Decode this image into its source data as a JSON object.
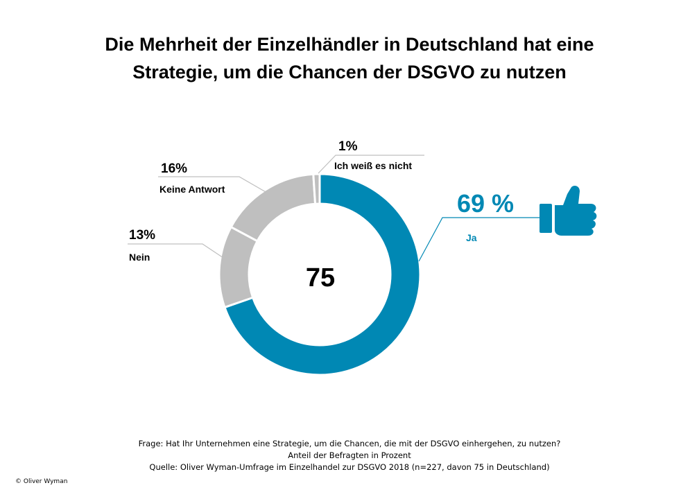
{
  "title_line1": "Die Mehrheit der Einzelhändler in Deutschland hat eine",
  "title_line2": "Strategie, um die Chancen der DSGVO zu nutzen",
  "chart_data": {
    "type": "pie",
    "center_label": "75",
    "slices": [
      {
        "label": "Ja",
        "value": 69,
        "value_label": "69 %",
        "color": "#0088b4"
      },
      {
        "label": "Nein",
        "value": 13,
        "value_label": "13%",
        "color": "#bfbfbf"
      },
      {
        "label": "Keine Antwort",
        "value": 16,
        "value_label": "16%",
        "color": "#bfbfbf"
      },
      {
        "label": "Ich weiß es nicht",
        "value": 1,
        "value_label": "1%",
        "color": "#bfbfbf"
      }
    ],
    "thumbs_up_icon": "thumbs-up-icon",
    "accent_color": "#0088b4"
  },
  "footer": {
    "question": "Frage: Hat Ihr Unternehmen  eine Strategie,  um die Chancen, die mit der DSGVO einhergehen,  zu nutzen?",
    "unit": "Anteil der Befragten  in Prozent",
    "source": "Quelle: Oliver Wyman-Umfrage im Einzelhandel zur DSGVO 2018 (n=227, davon 75 in Deutschland)"
  },
  "copyright": "© Oliver Wyman"
}
